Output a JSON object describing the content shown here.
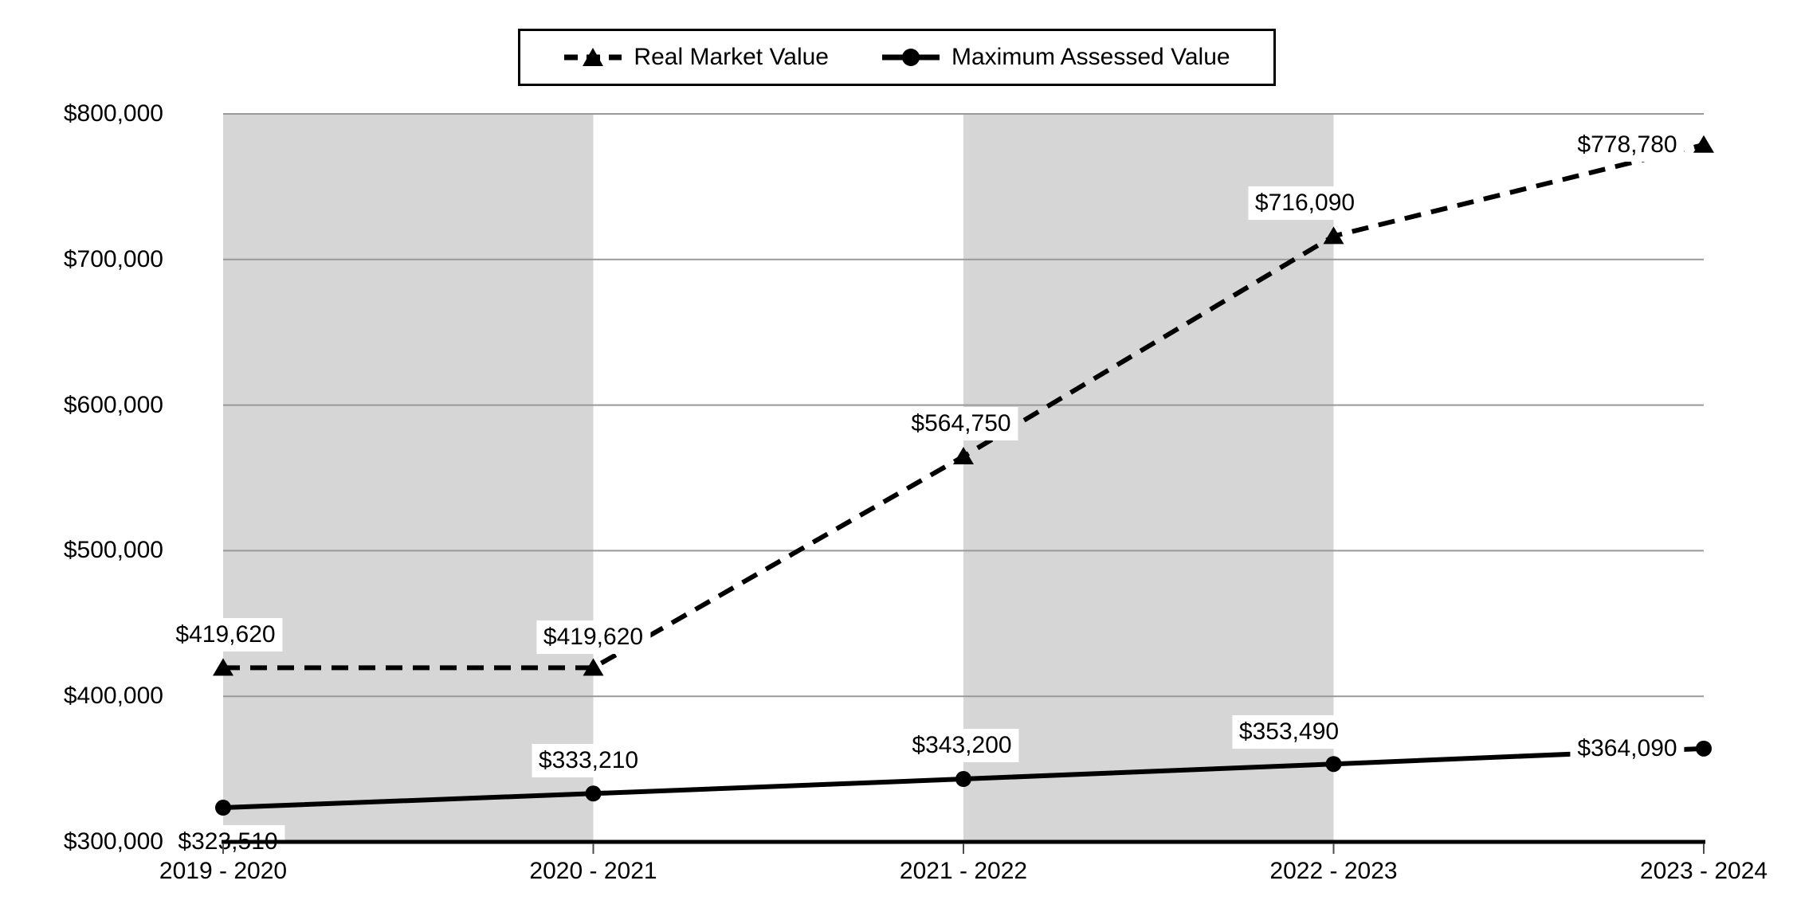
{
  "chart_data": {
    "type": "line",
    "categories": [
      "2019 - 2020",
      "2020 - 2021",
      "2021 - 2022",
      "2022 - 2023",
      "2023 - 2024"
    ],
    "series": [
      {
        "name": "Real Market Value",
        "line_style": "dashed",
        "marker": "triangle",
        "values": [
          419620,
          419620,
          564750,
          716090,
          778780
        ],
        "labels": [
          "$419,620",
          "$419,620",
          "$564,750",
          "$716,090",
          "$778,780"
        ]
      },
      {
        "name": "Maximum Assessed Value",
        "line_style": "solid",
        "marker": "circle",
        "values": [
          323510,
          333210,
          343200,
          353490,
          364090
        ],
        "labels": [
          "$323,510",
          "$333,210",
          "$343,200",
          "$353,490",
          "$364,090"
        ]
      }
    ],
    "title": "",
    "xlabel": "",
    "ylabel": "",
    "ylim": [
      300000,
      800000
    ],
    "ytick_step": 100000,
    "yticks": [
      "$800,000",
      "$700,000",
      "$600,000",
      "$500,000",
      "$400,000",
      "$300,000"
    ],
    "grid": true,
    "legend_position": "top-center",
    "plot_bands": "gray column between tick 1-2 and tick 3-4"
  },
  "colors": {
    "series": "#000000",
    "band_fill": "#d6d6d6",
    "gridline": "#999999",
    "axis_line": "#000000",
    "tick_mark": "#4d4d4d",
    "label_background": "#ffffff"
  }
}
